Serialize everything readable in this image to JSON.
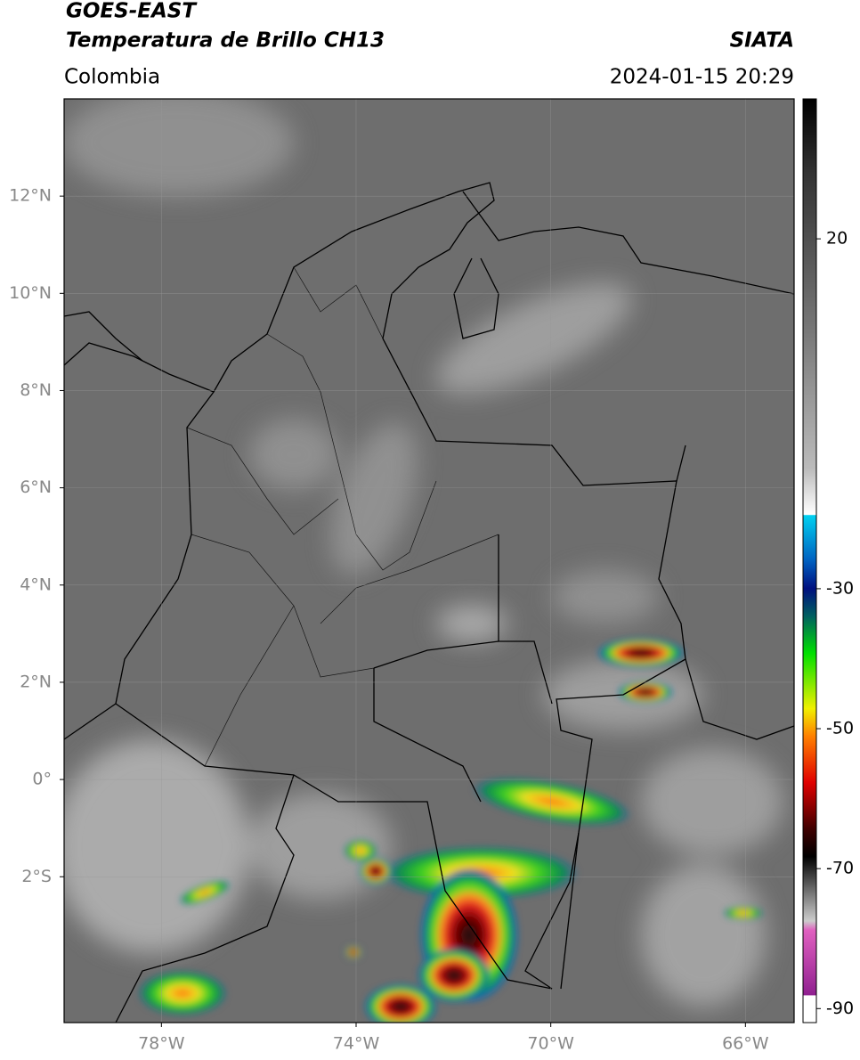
{
  "header": {
    "satellite": "GOES-EAST",
    "product": "Temperatura de Brillo CH13",
    "source": "SIATA",
    "region": "Colombia",
    "timestamp": "2024-01-15 20:29"
  },
  "map": {
    "lon_range": [
      -80,
      -65
    ],
    "lat_range": [
      -5,
      14
    ],
    "lat_ticks": [
      {
        "value": 12,
        "label": "12°N"
      },
      {
        "value": 10,
        "label": "10°N"
      },
      {
        "value": 8,
        "label": "8°N"
      },
      {
        "value": 6,
        "label": "6°N"
      },
      {
        "value": 4,
        "label": "4°N"
      },
      {
        "value": 2,
        "label": "2°N"
      },
      {
        "value": 0,
        "label": "0°"
      },
      {
        "value": -2,
        "label": "2°S"
      }
    ],
    "lon_ticks": [
      {
        "value": -78,
        "label": "78°W"
      },
      {
        "value": -74,
        "label": "74°W"
      },
      {
        "value": -70,
        "label": "70°W"
      },
      {
        "value": -66,
        "label": "66°W"
      }
    ]
  },
  "colorbar": {
    "range": [
      -92,
      40
    ],
    "ticks": [
      20,
      -30,
      -50,
      -70,
      -90
    ]
  }
}
